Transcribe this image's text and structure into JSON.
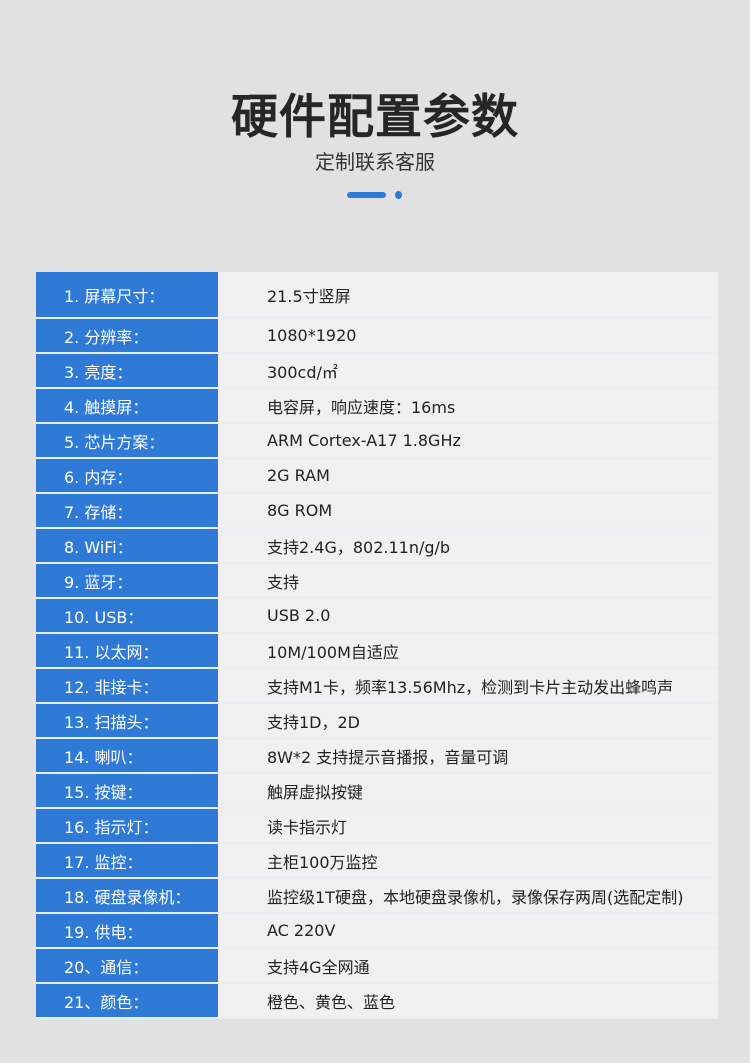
{
  "header": {
    "title": "硬件配置参数",
    "subtitle": "定制联系客服"
  },
  "accent_color": "#2f7ad6",
  "specs": [
    {
      "label": "1. 屏幕尺寸：",
      "value": "21.5寸竖屏"
    },
    {
      "label": "2. 分辨率：",
      "value": "1080*1920"
    },
    {
      "label": "3. 亮度：",
      "value": "300cd/㎡"
    },
    {
      "label": "4. 触摸屏：",
      "value": "电容屏，响应速度：16ms"
    },
    {
      "label": "5. 芯片方案：",
      "value": "ARM Cortex-A17 1.8GHz"
    },
    {
      "label": "6. 内存：",
      "value": "2G RAM"
    },
    {
      "label": "7. 存储：",
      "value": "8G ROM"
    },
    {
      "label": "8. WiFi：",
      "value": "支持2.4G，802.11n/g/b"
    },
    {
      "label": "9. 蓝牙：",
      "value": "支持"
    },
    {
      "label": "10. USB：",
      "value": "USB 2.0"
    },
    {
      "label": "11. 以太网：",
      "value": "10M/100M自适应"
    },
    {
      "label": "12. 非接卡：",
      "value": "支持M1卡，频率13.56Mhz，检测到卡片主动发出蜂鸣声"
    },
    {
      "label": "13. 扫描头：",
      "value": "支持1D，2D"
    },
    {
      "label": "14. 喇叭：",
      "value": "8W*2 支持提示音播报，音量可调"
    },
    {
      "label": "15. 按键：",
      "value": "触屏虚拟按键"
    },
    {
      "label": "16. 指示灯：",
      "value": "读卡指示灯"
    },
    {
      "label": "17. 监控：",
      "value": "主柜100万监控"
    },
    {
      "label": "18. 硬盘录像机：",
      "value": "监控级1T硬盘，本地硬盘录像机，录像保存两周(选配定制)"
    },
    {
      "label": "19. 供电：",
      "value": "AC 220V"
    },
    {
      "label": "20、通信：",
      "value": "支持4G全网通"
    },
    {
      "label": "21、颜色：",
      "value": "橙色、黄色、蓝色"
    }
  ]
}
